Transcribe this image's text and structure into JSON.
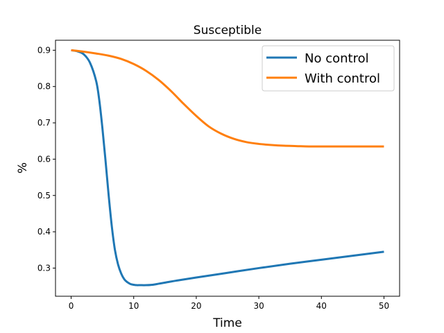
{
  "chart_data": {
    "type": "line",
    "title": "Susceptible",
    "xlabel": "Time",
    "ylabel": "%",
    "xlim": [
      -2.5,
      52.5
    ],
    "ylim": [
      0.2225,
      0.9275
    ],
    "xticks": [
      0,
      10,
      20,
      30,
      40,
      50
    ],
    "yticks": [
      0.3,
      0.4,
      0.5,
      0.6,
      0.7,
      0.8,
      0.9
    ],
    "grid": false,
    "legend_position": "top-right",
    "series": [
      {
        "name": "No control",
        "color": "#1f77b4",
        "x": [
          0,
          1,
          2,
          3,
          4,
          4.5,
          5,
          5.5,
          6,
          6.5,
          7,
          7.5,
          8,
          8.5,
          9,
          9.5,
          10,
          10.5,
          11,
          12,
          13,
          14,
          15,
          17,
          20,
          25,
          30,
          35,
          40,
          45,
          50
        ],
        "y": [
          0.9,
          0.897,
          0.889,
          0.866,
          0.815,
          0.762,
          0.685,
          0.595,
          0.5,
          0.415,
          0.35,
          0.31,
          0.285,
          0.269,
          0.261,
          0.256,
          0.254,
          0.253,
          0.253,
          0.253,
          0.254,
          0.257,
          0.26,
          0.266,
          0.274,
          0.287,
          0.3,
          0.312,
          0.323,
          0.334,
          0.345
        ]
      },
      {
        "name": "With control",
        "color": "#ff7f0e",
        "x": [
          0,
          2,
          4,
          6,
          8,
          10,
          12,
          14,
          16,
          18,
          20,
          22,
          24,
          26,
          28,
          30,
          32,
          34,
          36,
          38,
          40,
          42,
          45,
          50
        ],
        "y": [
          0.9,
          0.896,
          0.891,
          0.885,
          0.876,
          0.862,
          0.843,
          0.818,
          0.787,
          0.752,
          0.719,
          0.69,
          0.67,
          0.656,
          0.647,
          0.642,
          0.639,
          0.637,
          0.636,
          0.635,
          0.635,
          0.635,
          0.635,
          0.635
        ]
      }
    ]
  }
}
